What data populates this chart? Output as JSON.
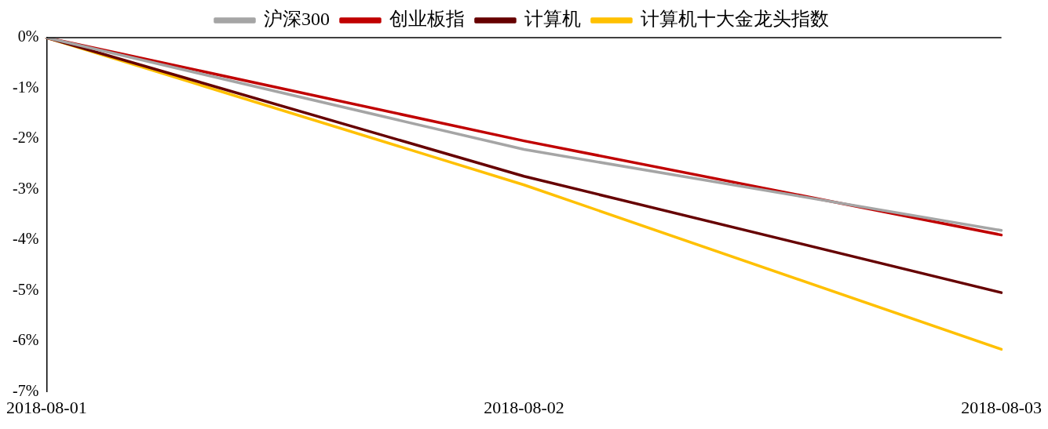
{
  "chart_data": {
    "type": "line",
    "categories": [
      "2018-08-01",
      "2018-08-02",
      "2018-08-03"
    ],
    "series": [
      {
        "name": "沪深300",
        "color": "#a5a5a5",
        "values": [
          0,
          -2.21,
          -3.81
        ]
      },
      {
        "name": "创业板指",
        "color": "#c00000",
        "values": [
          0,
          -2.04,
          -3.9
        ]
      },
      {
        "name": "计算机",
        "color": "#660000",
        "values": [
          0,
          -2.74,
          -5.04
        ]
      },
      {
        "name": "计算机十大金龙头指数",
        "color": "#ffc000",
        "values": [
          0,
          -2.91,
          -6.16
        ]
      }
    ],
    "ylim": [
      -7,
      0
    ],
    "yticks": [
      {
        "value": 0,
        "label": "0%"
      },
      {
        "value": -1,
        "label": "-1%"
      },
      {
        "value": -2,
        "label": "-2%"
      },
      {
        "value": -3,
        "label": "-3%"
      },
      {
        "value": -4,
        "label": "-4%"
      },
      {
        "value": -5,
        "label": "-5%"
      },
      {
        "value": -6,
        "label": "-6%"
      },
      {
        "value": -7,
        "label": "-7%"
      }
    ],
    "grid": false,
    "legend": "top",
    "marker": "none",
    "line_style": "solid"
  }
}
